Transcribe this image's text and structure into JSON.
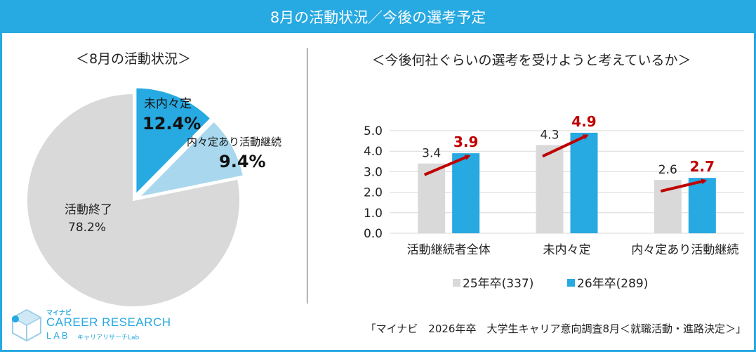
{
  "title": "8月の活動状況／今後の選考予定",
  "colors": {
    "accent": "#27a9e1",
    "gray": "#d9d9d9",
    "light_blue": "#a9d8ee",
    "red": "#c00000"
  },
  "chart_data": [
    {
      "type": "pie",
      "title": "＜8月の活動状況＞",
      "slices": [
        {
          "label": "未内々定",
          "value": 12.4,
          "value_label": "12.4%",
          "color": "#27a9e1"
        },
        {
          "label": "内々定あり活動継続",
          "value": 9.4,
          "value_label": "9.4%",
          "color": "#a9d8ee"
        },
        {
          "label": "活動終了",
          "value": 78.2,
          "value_label": "78.2%",
          "color": "#d9d9d9"
        }
      ]
    },
    {
      "type": "bar",
      "title": "＜今後何社ぐらいの選考を受けようと考えているか＞",
      "categories": [
        "活動継続者全体",
        "未内々定",
        "内々定あり活動継続"
      ],
      "series": [
        {
          "name": "25年卒(337)",
          "values": [
            3.4,
            4.3,
            2.6
          ],
          "color": "#d9d9d9"
        },
        {
          "name": "26年卒(289)",
          "values": [
            3.9,
            4.9,
            2.7
          ],
          "color": "#27a9e1"
        }
      ],
      "ylim": [
        0,
        5
      ],
      "yticks": [
        "0.0",
        "1.0",
        "2.0",
        "3.0",
        "4.0",
        "5.0"
      ],
      "grid": true,
      "legend_position": "bottom",
      "annotations": "red arrows from 25年卒 to 26年卒"
    }
  ],
  "logo": {
    "top_text": "マイナビ",
    "line1": "CAREER RESEARCH",
    "line2": "LAB",
    "sub": "キャリアリサーチLab"
  },
  "source": "「マイナビ　2026年卒　大学生キャリア意向調査8月＜就職活動・進路決定＞」"
}
